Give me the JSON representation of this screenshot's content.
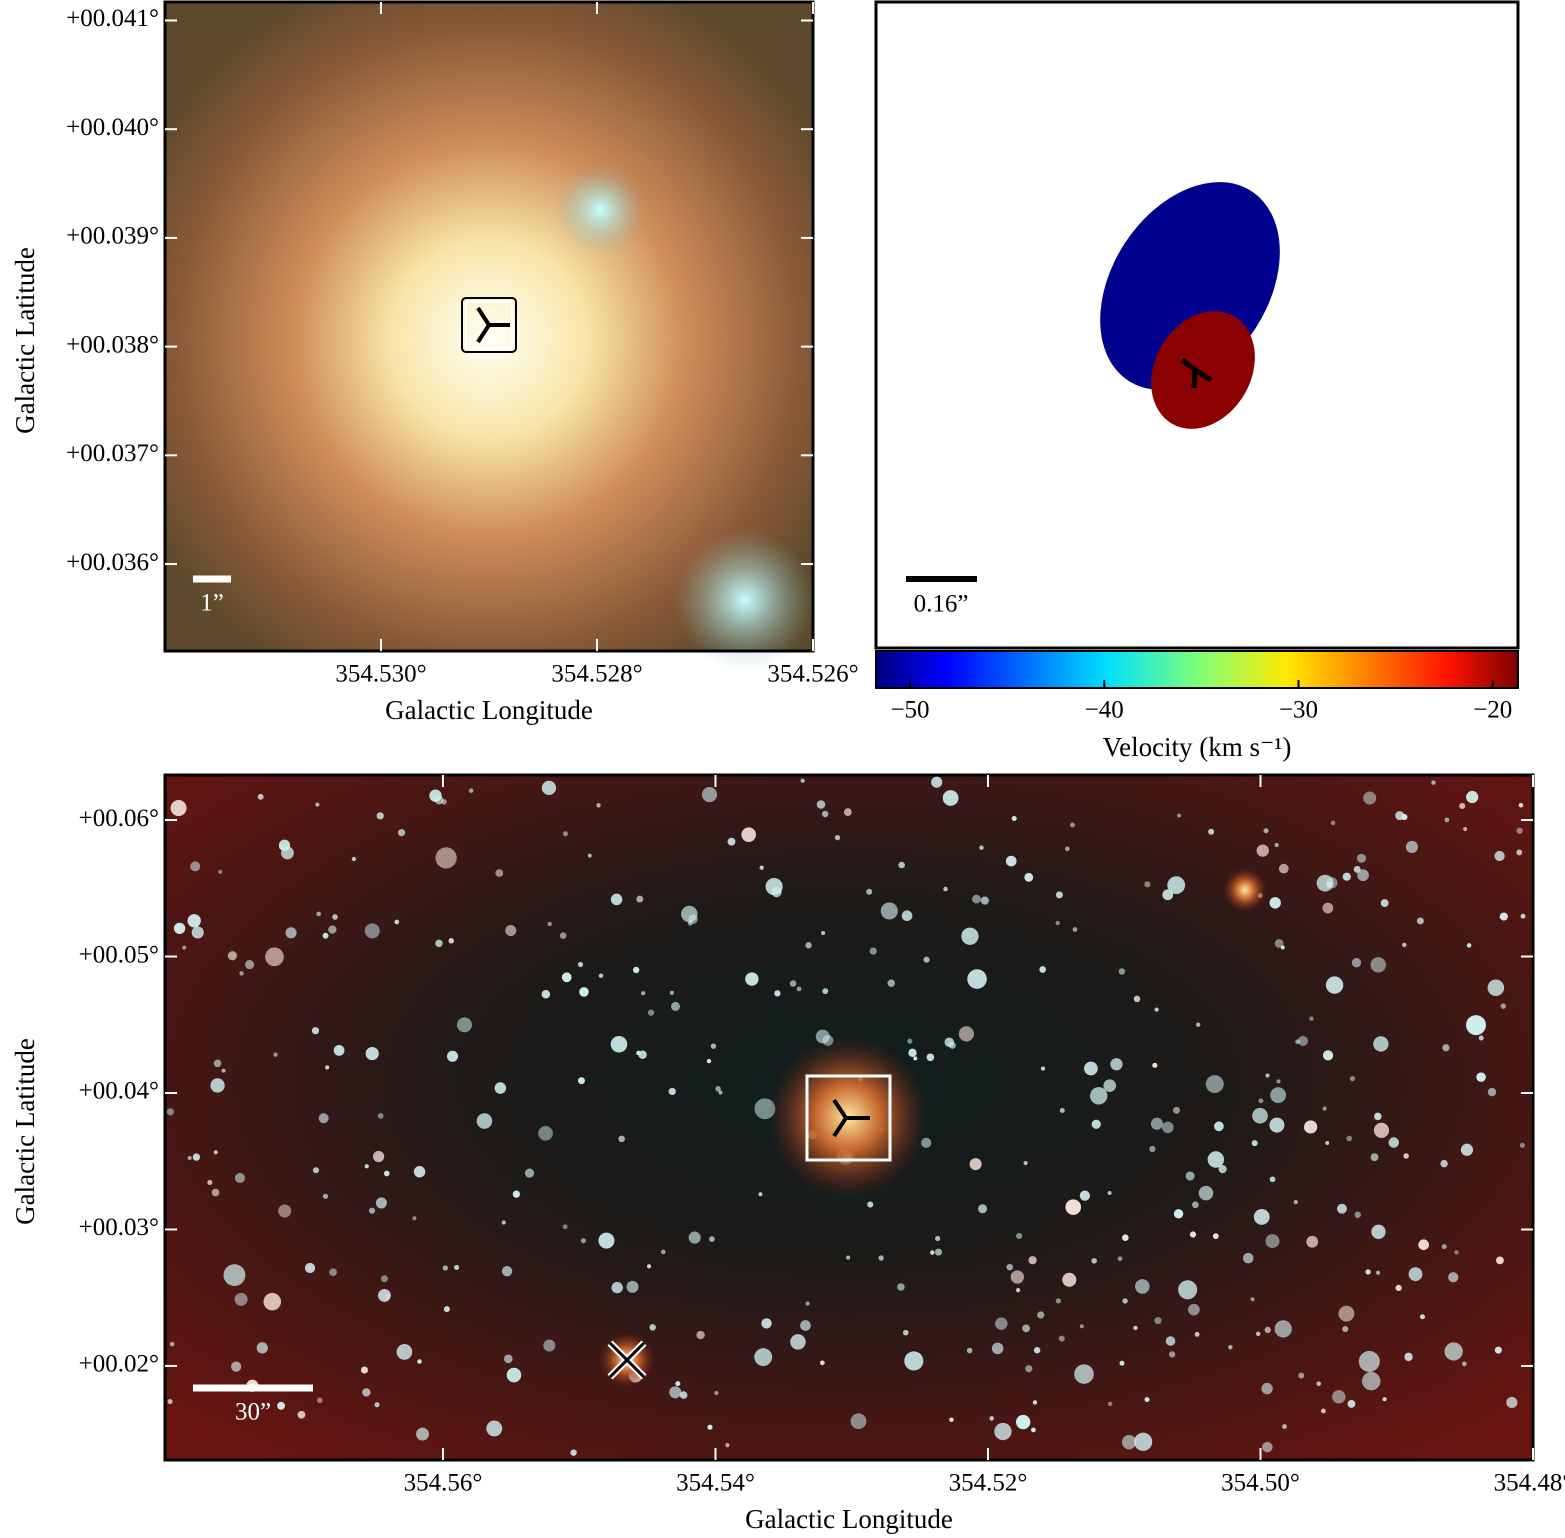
{
  "chart_data": [
    {
      "type": "image",
      "xlim": [
        354.532,
        354.526
      ],
      "ylim": [
        0.0352,
        0.04117
      ],
      "xticks": [
        {
          "value": 354.53,
          "label": "354.530°"
        },
        {
          "value": 354.528,
          "label": "354.528°"
        },
        {
          "value": 354.526,
          "label": "354.526°"
        }
      ],
      "yticks": [
        {
          "value": 0.036,
          "label": "+00.036°"
        },
        {
          "value": 0.037,
          "label": "+00.037°"
        },
        {
          "value": 0.038,
          "label": "+00.038°"
        },
        {
          "value": 0.039,
          "label": "+00.039°"
        },
        {
          "value": 0.04,
          "label": "+00.040°"
        },
        {
          "value": 0.041,
          "label": "+00.041°"
        }
      ],
      "xlabel": "Galactic Longitude",
      "ylabel": "Galactic Latitude",
      "scale_bar": "1”"
    },
    {
      "type": "ellipses",
      "scale_bar": "0.16”",
      "sources": [
        {
          "velocity": -50,
          "color": "#00008f"
        },
        {
          "velocity": -19,
          "color": "#8b0000"
        }
      ]
    },
    {
      "type": "colorbar",
      "xlim": [
        -51.75,
        -18.7
      ],
      "xticks": [
        {
          "value": -50,
          "label": "−50"
        },
        {
          "value": -40,
          "label": "−40"
        },
        {
          "value": -30,
          "label": "−30"
        },
        {
          "value": -20,
          "label": "−20"
        }
      ],
      "xlabel": "Velocity (km s⁻¹)"
    },
    {
      "type": "image",
      "xlim": [
        354.5804,
        354.48
      ],
      "ylim": [
        0.01311,
        0.0633
      ],
      "xticks": [
        {
          "value": 354.56,
          "label": "354.56°"
        },
        {
          "value": 354.54,
          "label": "354.54°"
        },
        {
          "value": 354.52,
          "label": "354.52°"
        },
        {
          "value": 354.5,
          "label": "354.50°"
        },
        {
          "value": 354.48,
          "label": "354.48°"
        }
      ],
      "yticks": [
        {
          "value": 0.02,
          "label": "+00.02°"
        },
        {
          "value": 0.03,
          "label": "+00.03°"
        },
        {
          "value": 0.04,
          "label": "+00.04°"
        },
        {
          "value": 0.05,
          "label": "+00.05°"
        },
        {
          "value": 0.06,
          "label": "+00.06°"
        }
      ],
      "xlabel": "Galactic Longitude",
      "ylabel": "Galactic Latitude",
      "scale_bar": "30”"
    }
  ]
}
